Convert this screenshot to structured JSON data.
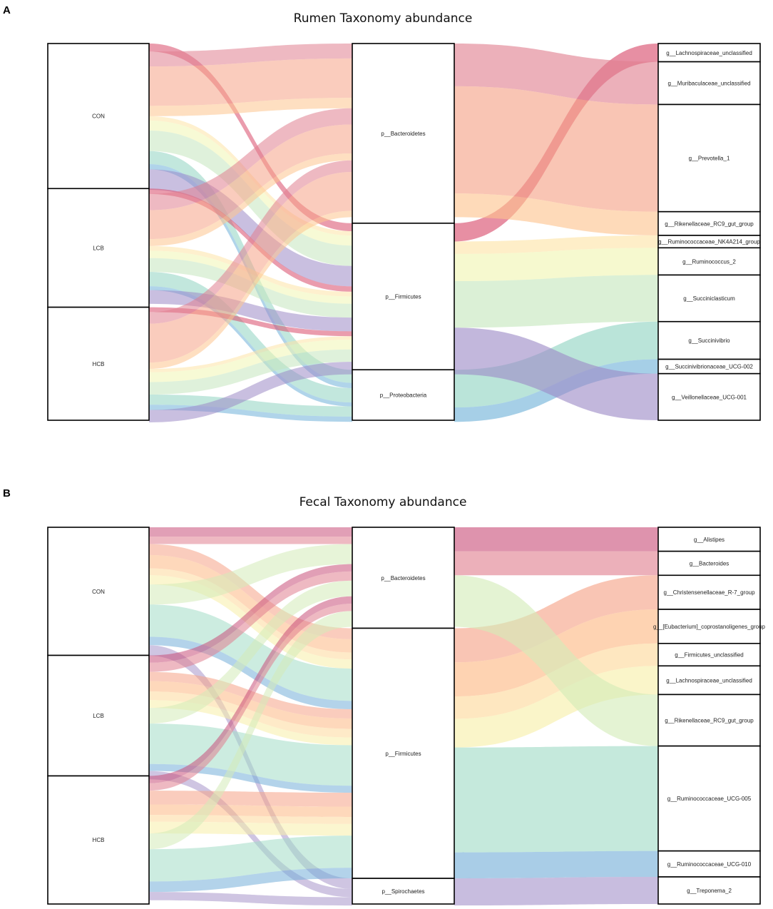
{
  "figure": {
    "panels": [
      "A",
      "B"
    ]
  },
  "chart_data": [
    {
      "type": "sankey",
      "panel": "A",
      "title": "Rumen Taxonomy abundance",
      "axes": [
        {
          "name": "group",
          "nodes": [
            {
              "label": "CON",
              "value": 0.385
            },
            {
              "label": "LCB",
              "value": 0.315
            },
            {
              "label": "HCB",
              "value": 0.3
            }
          ]
        },
        {
          "name": "phylum",
          "nodes": [
            {
              "label": "p__Bacteroidetes",
              "value": 0.477
            },
            {
              "label": "p__Firmicutes",
              "value": 0.389
            },
            {
              "label": "p__Proteobacteria",
              "value": 0.134
            }
          ]
        },
        {
          "name": "genus",
          "nodes": [
            {
              "label": "g__Lachnospiraceae_unclassified",
              "value": 0.047,
              "phylum": "p__Firmicutes",
              "color": "#d84a6a"
            },
            {
              "label": "g__Muribaculaceae_unclassified",
              "value": 0.11,
              "phylum": "p__Bacteroidetes",
              "color": "#e07f8f"
            },
            {
              "label": "g__Prevotella_1",
              "value": 0.276,
              "phylum": "p__Bacteroidetes",
              "color": "#f6a286"
            },
            {
              "label": "g__Rikenellaceae_RC9_gut_group",
              "value": 0.061,
              "phylum": "p__Bacteroidetes",
              "color": "#fdc48e"
            },
            {
              "label": "g__Ruminococcaceae_NK4A214_group",
              "value": 0.032,
              "phylum": "p__Firmicutes",
              "color": "#fde4a6"
            },
            {
              "label": "g__Ruminococcus_2",
              "value": 0.07,
              "phylum": "p__Firmicutes",
              "color": "#f0f6b2"
            },
            {
              "label": "g__Succiniclasticum",
              "value": 0.12,
              "phylum": "p__Firmicutes",
              "color": "#c5e6bd"
            },
            {
              "label": "g__Succinivibrio",
              "value": 0.097,
              "phylum": "p__Proteobacteria",
              "color": "#8fd4c1"
            },
            {
              "label": "g__Succinivibrionaceae_UCG-002",
              "value": 0.037,
              "phylum": "p__Proteobacteria",
              "color": "#6fb1d8"
            },
            {
              "label": "g__Veillonellaceae_UCG-001",
              "value": 0.12,
              "phylum": "p__Firmicutes",
              "color": "#9c8ac6"
            }
          ]
        }
      ]
    },
    {
      "type": "sankey",
      "panel": "B",
      "title": "Fecal Taxonomy abundance",
      "axes": [
        {
          "name": "group",
          "nodes": [
            {
              "label": "CON",
              "value": 0.34
            },
            {
              "label": "LCB",
              "value": 0.32
            },
            {
              "label": "HCB",
              "value": 0.34
            }
          ]
        },
        {
          "name": "phylum",
          "nodes": [
            {
              "label": "p__Bacteroidetes",
              "value": 0.268
            },
            {
              "label": "p__Firmicutes",
              "value": 0.664
            },
            {
              "label": "p__Spirochaetes",
              "value": 0.068
            }
          ]
        },
        {
          "name": "genus",
          "nodes": [
            {
              "label": "g__Alistipes",
              "value": 0.062,
              "phylum": "p__Bacteroidetes",
              "color": "#c9517a"
            },
            {
              "label": "g__Bacteroides",
              "value": 0.062,
              "phylum": "p__Bacteroidetes",
              "color": "#e07f8f"
            },
            {
              "label": "g__Christensenellaceae_R-7_group",
              "value": 0.088,
              "phylum": "p__Firmicutes",
              "color": "#f6a286"
            },
            {
              "label": "g__[Eubacterium]_coprostanoligenes_group",
              "value": 0.088,
              "phylum": "p__Firmicutes",
              "color": "#fdb883"
            },
            {
              "label": "g__Firmicutes_unclassified",
              "value": 0.058,
              "phylum": "p__Firmicutes",
              "color": "#fdd89a"
            },
            {
              "label": "g__Lachnospiraceae_unclassified",
              "value": 0.074,
              "phylum": "p__Firmicutes",
              "color": "#f7efa8"
            },
            {
              "label": "g__Rikenellaceae_RC9_gut_group",
              "value": 0.133,
              "phylum": "p__Bacteroidetes",
              "color": "#d4ebb8"
            },
            {
              "label": "g__Ruminococcaceae_UCG-005",
              "value": 0.271,
              "phylum": "p__Firmicutes",
              "color": "#a2dcc6"
            },
            {
              "label": "g__Ruminococcaceae_UCG-010",
              "value": 0.067,
              "phylum": "p__Firmicutes",
              "color": "#74aed8"
            },
            {
              "label": "g__Treponema_2",
              "value": 0.07,
              "phylum": "p__Spirochaetes",
              "color": "#a795cb"
            }
          ]
        }
      ]
    }
  ]
}
